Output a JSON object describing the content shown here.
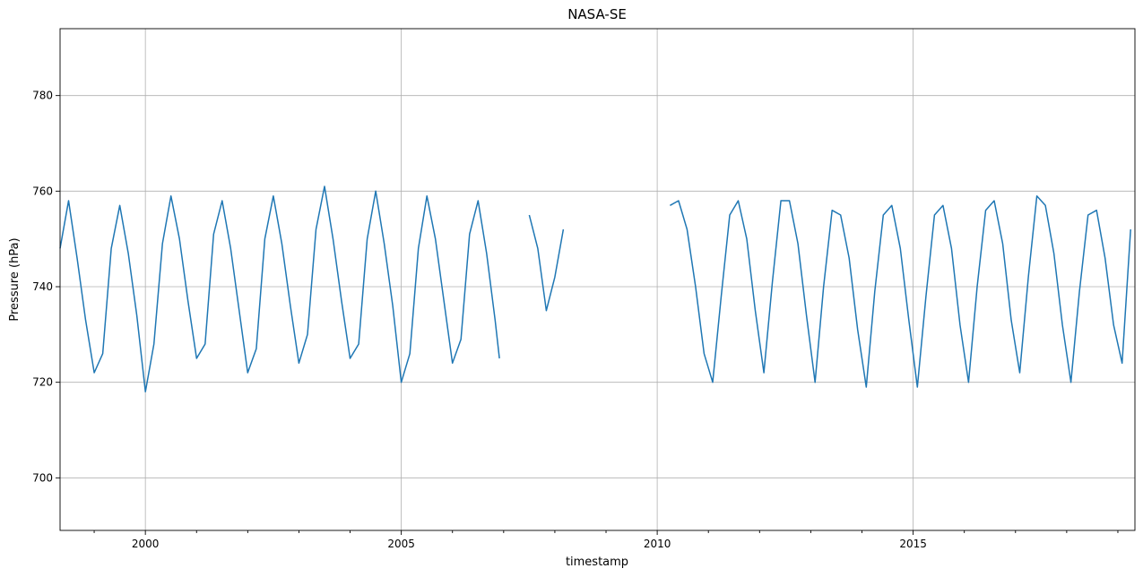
{
  "chart_data": {
    "type": "line",
    "title": "NASA-SE",
    "xlabel": "timestamp",
    "ylabel": "Pressure (hPa)",
    "xlim": [
      "1998-05-01",
      "2019-05-01"
    ],
    "ylim": [
      689,
      794
    ],
    "x_ticks": [
      2000,
      2005,
      2010,
      2015
    ],
    "y_ticks": [
      700,
      720,
      740,
      760,
      780
    ],
    "grid": true,
    "series": [
      {
        "color": "#1f77b4",
        "segments": [
          {
            "x": [
              "1998-05",
              "1998-07",
              "1998-09",
              "1998-11",
              "1999-01",
              "1999-03",
              "1999-05",
              "1999-07",
              "1999-09",
              "1999-11",
              "2000-01",
              "2000-03",
              "2000-05",
              "2000-07",
              "2000-09",
              "2000-11",
              "2001-01",
              "2001-03",
              "2001-05",
              "2001-07",
              "2001-09",
              "2001-11",
              "2002-01",
              "2002-03",
              "2002-05",
              "2002-07",
              "2002-09",
              "2002-11",
              "2003-01",
              "2003-03",
              "2003-05",
              "2003-07",
              "2003-09",
              "2003-11",
              "2004-01",
              "2004-03",
              "2004-05",
              "2004-07",
              "2004-09",
              "2004-11",
              "2005-01",
              "2005-03",
              "2005-05",
              "2005-07",
              "2005-09",
              "2005-11",
              "2006-01",
              "2006-03",
              "2006-05",
              "2006-07",
              "2006-09",
              "2006-11",
              "2006-12"
            ],
            "y": [
              748,
              758,
              746,
              733,
              722,
              726,
              748,
              757,
              747,
              734,
              718,
              728,
              749,
              759,
              750,
              737,
              725,
              728,
              751,
              758,
              748,
              735,
              722,
              727,
              750,
              759,
              749,
              736,
              724,
              730,
              752,
              761,
              750,
              737,
              725,
              728,
              750,
              760,
              749,
              736,
              720,
              726,
              748,
              759,
              750,
              737,
              724,
              729,
              751,
              758,
              747,
              733,
              725
            ]
          },
          {
            "x": [
              "2007-07",
              "2007-09",
              "2007-11",
              "2008-01",
              "2008-03"
            ],
            "y": [
              755,
              748,
              735,
              742,
              752
            ]
          },
          {
            "x": [
              "2010-04",
              "2010-06",
              "2010-08",
              "2010-10",
              "2010-12",
              "2011-02",
              "2011-04",
              "2011-06",
              "2011-08",
              "2011-10",
              "2011-12",
              "2012-02",
              "2012-04",
              "2012-06",
              "2012-08",
              "2012-10",
              "2012-12",
              "2013-02",
              "2013-04",
              "2013-06",
              "2013-08",
              "2013-10",
              "2013-12",
              "2014-02",
              "2014-04",
              "2014-06",
              "2014-08",
              "2014-10",
              "2014-12",
              "2015-02",
              "2015-04",
              "2015-06",
              "2015-08",
              "2015-10",
              "2015-12",
              "2016-02",
              "2016-04",
              "2016-06",
              "2016-08",
              "2016-10",
              "2016-12",
              "2017-02",
              "2017-04",
              "2017-06",
              "2017-08",
              "2017-10",
              "2017-12",
              "2018-02",
              "2018-04",
              "2018-06",
              "2018-08",
              "2018-10",
              "2018-12",
              "2019-02",
              "2019-04"
            ],
            "y": [
              757,
              758,
              752,
              740,
              726,
              720,
              738,
              755,
              758,
              750,
              735,
              722,
              741,
              758,
              758,
              749,
              734,
              720,
              740,
              756,
              755,
              746,
              731,
              719,
              739,
              755,
              757,
              748,
              733,
              719,
              738,
              755,
              757,
              748,
              732,
              720,
              740,
              756,
              758,
              749,
              733,
              722,
              742,
              759,
              757,
              747,
              732,
              720,
              739,
              755,
              756,
              746,
              732,
              724,
              752
            ]
          }
        ]
      }
    ]
  }
}
